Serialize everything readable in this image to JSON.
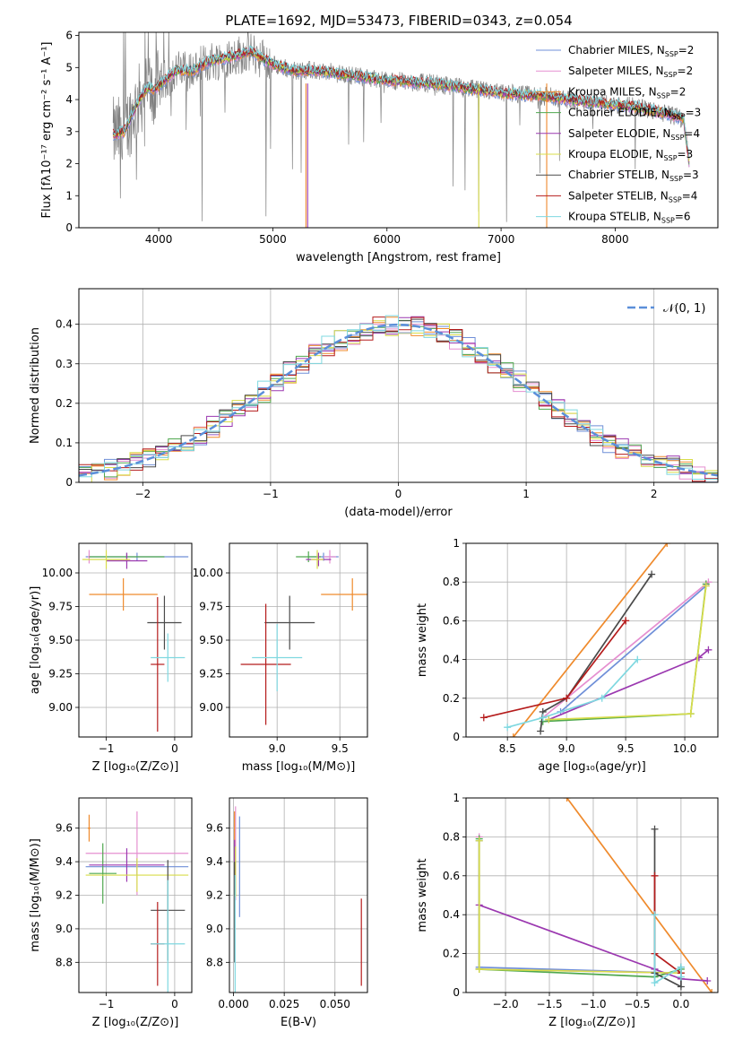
{
  "figure_title": "PLATE=1692, MJD=53473, FIBERID=0343, z=0.054",
  "models": [
    {
      "name": "Chabrier MILES",
      "nssp": "2",
      "color": "#6f8fd8"
    },
    {
      "name": "Salpeter MILES",
      "nssp": "2",
      "color": "#e58fd0"
    },
    {
      "name": "Kroupa MILES",
      "nssp": "2",
      "color": "#ef8a2c"
    },
    {
      "name": "Chabrier ELODIE",
      "nssp": "3",
      "color": "#4fa84f"
    },
    {
      "name": "Salpeter ELODIE",
      "nssp": "4",
      "color": "#9b38b0"
    },
    {
      "name": "Kroupa ELODIE",
      "nssp": "3",
      "color": "#d8dc4a"
    },
    {
      "name": "Chabrier STELIB",
      "nssp": "3",
      "color": "#4a4a4a"
    },
    {
      "name": "Salpeter STELIB",
      "nssp": "4",
      "color": "#b51c1c"
    },
    {
      "name": "Kroupa STELIB",
      "nssp": "6",
      "color": "#7fd8e0"
    }
  ],
  "nssp_prefix": "N",
  "nssp_sub": "SSP",
  "data_color": "#808080",
  "chart_data": [
    {
      "id": "spectrum",
      "type": "line",
      "xlabel": "wavelength [Angstrom, rest frame]",
      "ylabel": "Flux [fλ10⁻¹⁷ erg cm⁻² s⁻¹ A⁻¹]",
      "xlim": [
        3300,
        8900
      ],
      "ylim": [
        0,
        6.1
      ],
      "xticks": [
        4000,
        5000,
        6000,
        7000,
        8000
      ],
      "yticks": [
        0,
        1,
        2,
        3,
        4,
        5,
        6
      ],
      "grid": false,
      "legend": "top-right",
      "continuum_nodes": [
        [
          3600,
          2.9
        ],
        [
          3700,
          3.0
        ],
        [
          3800,
          3.8
        ],
        [
          3900,
          4.4
        ],
        [
          3960,
          4.3
        ],
        [
          4050,
          4.6
        ],
        [
          4150,
          4.9
        ],
        [
          4300,
          4.9
        ],
        [
          4450,
          5.2
        ],
        [
          4600,
          5.3
        ],
        [
          4800,
          5.5
        ],
        [
          5000,
          5.1
        ],
        [
          5200,
          4.9
        ],
        [
          5400,
          4.9
        ],
        [
          5600,
          4.8
        ],
        [
          5800,
          4.7
        ],
        [
          6000,
          4.6
        ],
        [
          6200,
          4.55
        ],
        [
          6400,
          4.5
        ],
        [
          6600,
          4.4
        ],
        [
          6800,
          4.3
        ],
        [
          7000,
          4.2
        ],
        [
          7200,
          4.15
        ],
        [
          7400,
          4.1
        ],
        [
          7600,
          4.0
        ],
        [
          7800,
          3.9
        ],
        [
          8000,
          3.85
        ],
        [
          8200,
          3.75
        ],
        [
          8400,
          3.6
        ],
        [
          8600,
          3.4
        ],
        [
          8650,
          2.0
        ]
      ]
    },
    {
      "id": "residuals",
      "type": "step",
      "xlabel": "(data-model)/error",
      "ylabel": "Normed distribution",
      "xlim": [
        -2.5,
        2.5
      ],
      "ylim": [
        0,
        0.49
      ],
      "xticks": [
        -2,
        -1,
        0,
        1,
        2
      ],
      "yticks": [
        0.0,
        0.1,
        0.2,
        0.3,
        0.4
      ],
      "grid": true,
      "legend": "top-right",
      "reference_label": "𝒩(0, 1)",
      "reference_color": "#5b8fd9",
      "bin_width": 0.1
    },
    {
      "id": "age_vs_Z",
      "type": "errorbar",
      "xlabel": "Z [log₁₀(Z/Z⊙)]",
      "ylabel": "age  [log₁₀(age/yr)]",
      "xlim": [
        -1.4,
        0.25
      ],
      "ylim": [
        8.78,
        10.22
      ],
      "xticks": [
        -1,
        0
      ],
      "yticks": [
        9.0,
        9.25,
        9.5,
        9.75,
        10.0
      ],
      "ytick_labels": [
        "9.00",
        "9.25",
        "9.50",
        "9.75",
        "10.00"
      ],
      "grid": true,
      "points": [
        {
          "m": 0,
          "x": -0.55,
          "xe": 0.75,
          "y": 10.12,
          "ye": 0.03
        },
        {
          "m": 1,
          "x": -1.25,
          "xe": 0.02,
          "y": 10.12,
          "ye": 0.05
        },
        {
          "m": 2,
          "x": -0.75,
          "xe": 0.5,
          "y": 9.84,
          "ye": 0.12
        },
        {
          "m": 3,
          "x": -0.7,
          "xe": 0.55,
          "y": 10.12,
          "ye": 0.03
        },
        {
          "m": 4,
          "x": -0.7,
          "xe": 0.3,
          "y": 10.09,
          "ye": 0.06
        },
        {
          "m": 5,
          "x": -1.0,
          "xe": 0.35,
          "y": 10.1,
          "ye": 0.07
        },
        {
          "m": 6,
          "x": -0.15,
          "xe": 0.25,
          "y": 9.63,
          "ye": 0.2
        },
        {
          "m": 7,
          "x": -0.25,
          "xe": 0.1,
          "y": 9.32,
          "ye": 0.5
        },
        {
          "m": 8,
          "x": -0.1,
          "xe": 0.25,
          "y": 9.37,
          "ye": 0.18
        }
      ]
    },
    {
      "id": "age_vs_mass",
      "type": "errorbar",
      "xlabel": "mass [log₁₀(M/M⊙)]",
      "ylabel": "",
      "xlim": [
        8.62,
        9.72
      ],
      "ylim": [
        8.78,
        10.22
      ],
      "xticks": [
        9.0,
        9.5
      ],
      "xtick_labels": [
        "9.0",
        "9.5"
      ],
      "yticks": [
        9.0,
        9.25,
        9.5,
        9.75,
        10.0
      ],
      "ytick_labels": [
        "9.00",
        "9.25",
        "9.50",
        "9.75",
        "10.00"
      ],
      "grid": true,
      "points": [
        {
          "m": 0,
          "x": 9.37,
          "xe": 0.12,
          "y": 10.12,
          "ye": 0.03
        },
        {
          "m": 1,
          "x": 9.42,
          "xe": 0.05,
          "y": 10.12,
          "ye": 0.05
        },
        {
          "m": 2,
          "x": 9.6,
          "xe": 0.25,
          "y": 9.84,
          "ye": 0.12
        },
        {
          "m": 3,
          "x": 9.25,
          "xe": 0.1,
          "y": 10.12,
          "ye": 0.04
        },
        {
          "m": 4,
          "x": 9.33,
          "xe": 0.1,
          "y": 10.1,
          "ye": 0.05
        },
        {
          "m": 5,
          "x": 9.32,
          "xe": 0.05,
          "y": 10.1,
          "ye": 0.07
        },
        {
          "m": 6,
          "x": 9.1,
          "xe": 0.2,
          "y": 9.63,
          "ye": 0.2
        },
        {
          "m": 7,
          "x": 8.91,
          "xe": 0.2,
          "y": 9.32,
          "ye": 0.45
        },
        {
          "m": 8,
          "x": 9.0,
          "xe": 0.2,
          "y": 9.37,
          "ye": 0.25
        }
      ]
    },
    {
      "id": "weight_vs_age",
      "type": "line",
      "xlabel": "age  [log₁₀(age/yr)]",
      "ylabel": "mass weight",
      "xlim": [
        8.15,
        10.28
      ],
      "ylim": [
        0,
        1
      ],
      "xticks": [
        8.5,
        9.0,
        9.5,
        10.0
      ],
      "xtick_labels": [
        "8.5",
        "9.0",
        "9.5",
        "10.0"
      ],
      "yticks": [
        0.0,
        0.2,
        0.4,
        0.6,
        0.8,
        1.0
      ],
      "grid": true,
      "series": [
        {
          "m": 0,
          "x": [
            8.95,
            10.18
          ],
          "y": [
            0.13,
            0.78
          ]
        },
        {
          "m": 1,
          "x": [
            8.8,
            10.2
          ],
          "y": [
            0.1,
            0.8
          ]
        },
        {
          "m": 2,
          "x": [
            8.55,
            9.85
          ],
          "y": [
            0.0,
            1.0
          ]
        },
        {
          "m": 3,
          "x": [
            8.8,
            10.05,
            10.18
          ],
          "y": [
            0.08,
            0.12,
            0.79
          ]
        },
        {
          "m": 4,
          "x": [
            8.85,
            10.12,
            10.2
          ],
          "y": [
            0.09,
            0.41,
            0.45
          ]
        },
        {
          "m": 5,
          "x": [
            8.85,
            10.05,
            10.18
          ],
          "y": [
            0.09,
            0.12,
            0.78
          ]
        },
        {
          "m": 6,
          "x": [
            8.78,
            8.8,
            9.0,
            9.72
          ],
          "y": [
            0.03,
            0.13,
            0.2,
            0.84
          ]
        },
        {
          "m": 7,
          "x": [
            8.3,
            9.0,
            9.5,
            9.5
          ],
          "y": [
            0.1,
            0.2,
            0.6,
            0.6
          ]
        },
        {
          "m": 8,
          "x": [
            8.5,
            8.8,
            9.3,
            9.6
          ],
          "y": [
            0.05,
            0.1,
            0.2,
            0.4
          ]
        }
      ]
    },
    {
      "id": "mass_vs_Z",
      "type": "errorbar",
      "xlabel": "Z [log₁₀(Z/Z⊙)]",
      "ylabel": "mass [log₁₀(M/M⊙)]",
      "xlim": [
        -1.4,
        0.25
      ],
      "ylim": [
        8.62,
        9.78
      ],
      "xticks": [
        -1,
        0
      ],
      "yticks": [
        8.8,
        9.0,
        9.2,
        9.4,
        9.6
      ],
      "ytick_labels": [
        "8.8",
        "9.0",
        "9.2",
        "9.4",
        "9.6"
      ],
      "grid": true,
      "points": [
        {
          "m": 0,
          "x": -0.55,
          "xe": 0.75,
          "y": 9.37,
          "ye": 0.05
        },
        {
          "m": 1,
          "x": -0.55,
          "xe": 0.75,
          "y": 9.45,
          "ye": 0.25
        },
        {
          "m": 2,
          "x": -1.25,
          "xe": 0.02,
          "y": 9.6,
          "ye": 0.08
        },
        {
          "m": 3,
          "x": -1.05,
          "xe": 0.2,
          "y": 9.33,
          "ye": 0.18
        },
        {
          "m": 4,
          "x": -0.7,
          "xe": 0.55,
          "y": 9.38,
          "ye": 0.1
        },
        {
          "m": 5,
          "x": -0.55,
          "xe": 0.75,
          "y": 9.32,
          "ye": 0.1
        },
        {
          "m": 6,
          "x": -0.1,
          "xe": 0.25,
          "y": 9.11,
          "ye": 0.3
        },
        {
          "m": 7,
          "x": -0.25,
          "xe": 0.1,
          "y": 8.91,
          "ye": 0.25
        },
        {
          "m": 8,
          "x": -0.1,
          "xe": 0.25,
          "y": 8.91,
          "ye": 0.38
        }
      ]
    },
    {
      "id": "mass_vs_ebv",
      "type": "errorbar",
      "xlabel": "E(B-V)",
      "ylabel": "",
      "xlim": [
        -0.002,
        0.066
      ],
      "ylim": [
        8.62,
        9.78
      ],
      "xticks": [
        0.0,
        0.025,
        0.05
      ],
      "xtick_labels": [
        "0.000",
        "0.025",
        "0.050"
      ],
      "yticks": [
        8.8,
        9.0,
        9.2,
        9.4,
        9.6
      ],
      "ytick_labels": [
        "8.8",
        "9.0",
        "9.2",
        "9.4",
        "9.6"
      ],
      "grid": true,
      "points": [
        {
          "m": 0,
          "x": 0.003,
          "xe": 0,
          "y": 9.37,
          "ye": 0.3
        },
        {
          "m": 1,
          "x": 0.001,
          "xe": 0,
          "y": 9.45,
          "ye": 0.28
        },
        {
          "m": 2,
          "x": 0.0005,
          "xe": 0,
          "y": 9.6,
          "ye": 0.1
        },
        {
          "m": 3,
          "x": 0.0005,
          "xe": 0,
          "y": 9.35,
          "ye": 0.15
        },
        {
          "m": 4,
          "x": 0.0005,
          "xe": 0,
          "y": 9.38,
          "ye": 0.15
        },
        {
          "m": 5,
          "x": 0.001,
          "xe": 0,
          "y": 9.34,
          "ye": 0.15
        },
        {
          "m": 6,
          "x": 0.0005,
          "xe": 0,
          "y": 9.1,
          "ye": 0.3
        },
        {
          "m": 7,
          "x": 0.063,
          "xe": 0,
          "y": 8.92,
          "ye": 0.26
        },
        {
          "m": 8,
          "x": 0.0008,
          "xe": 0,
          "y": 8.92,
          "ye": 0.4
        }
      ]
    },
    {
      "id": "weight_vs_Z",
      "type": "line",
      "xlabel": "Z [log₁₀(Z/Z⊙)]",
      "ylabel": "mass weight",
      "xlim": [
        -2.45,
        0.42
      ],
      "ylim": [
        0,
        1
      ],
      "xticks": [
        -2.0,
        -1.5,
        -1.0,
        -0.5,
        0.0
      ],
      "xtick_labels": [
        "−2.0",
        "−1.5",
        "−1.0",
        "−0.5",
        "0.0"
      ],
      "yticks": [
        0.0,
        0.2,
        0.4,
        0.6,
        0.8,
        1.0
      ],
      "grid": true,
      "series": [
        {
          "m": 0,
          "x": [
            -2.3,
            -2.3,
            0.0
          ],
          "y": [
            0.78,
            0.13,
            0.1
          ]
        },
        {
          "m": 1,
          "x": [
            -2.3,
            -2.3,
            0.0
          ],
          "y": [
            0.8,
            0.12,
            0.1
          ]
        },
        {
          "m": 2,
          "x": [
            -1.3,
            0.35
          ],
          "y": [
            1.0,
            0.0
          ]
        },
        {
          "m": 3,
          "x": [
            -2.3,
            -2.3,
            -0.3,
            0.0
          ],
          "y": [
            0.79,
            0.12,
            0.08,
            0.12
          ]
        },
        {
          "m": 4,
          "x": [
            -2.3,
            -0.3,
            0.0,
            0.3
          ],
          "y": [
            0.45,
            0.12,
            0.07,
            0.06
          ]
        },
        {
          "m": 5,
          "x": [
            -2.3,
            -2.3,
            0.0
          ],
          "y": [
            0.78,
            0.12,
            0.1
          ]
        },
        {
          "m": 6,
          "x": [
            -0.3,
            -0.3,
            0.0,
            0.0
          ],
          "y": [
            0.84,
            0.1,
            0.03,
            0.13
          ]
        },
        {
          "m": 7,
          "x": [
            -0.3,
            -0.3,
            0.0
          ],
          "y": [
            0.6,
            0.2,
            0.1
          ]
        },
        {
          "m": 8,
          "x": [
            -0.3,
            -0.3,
            0.0,
            0.0
          ],
          "y": [
            0.4,
            0.05,
            0.13,
            0.08
          ]
        }
      ]
    }
  ]
}
